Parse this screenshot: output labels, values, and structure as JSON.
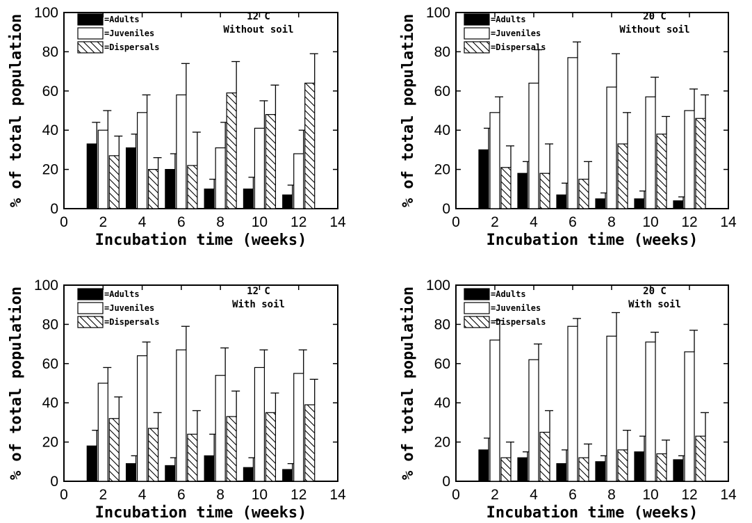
{
  "chart_data": [
    {
      "type": "bar",
      "condition": [
        "12 C",
        "Without soil"
      ],
      "xlabel": "Incubation time (weeks)",
      "ylabel": "% of total population",
      "xlim": [
        0,
        14
      ],
      "ylim": [
        0,
        100
      ],
      "xticks": [
        0,
        2,
        4,
        6,
        8,
        10,
        12,
        14
      ],
      "yticks": [
        0,
        20,
        40,
        60,
        80,
        100
      ],
      "legend": [
        "=Adults",
        "=Juveniles",
        "=Dispersals"
      ],
      "legend_position": "top-left",
      "x": [
        2,
        4,
        6,
        8,
        10,
        12
      ],
      "series": [
        {
          "name": "=Adults",
          "values": [
            33,
            31,
            20,
            10,
            10,
            7
          ],
          "error": [
            11,
            7,
            8,
            5,
            6,
            5
          ]
        },
        {
          "name": "=Juveniles",
          "values": [
            40,
            49,
            58,
            31,
            41,
            28
          ],
          "error": [
            10,
            9,
            16,
            13,
            14,
            12
          ]
        },
        {
          "name": "=Dispersals",
          "values": [
            27,
            20,
            22,
            59,
            48,
            64
          ],
          "error": [
            10,
            6,
            17,
            16,
            15,
            15
          ]
        }
      ]
    },
    {
      "type": "bar",
      "condition": [
        "20 C",
        "Without soil"
      ],
      "xlabel": "Incubation time (weeks)",
      "ylabel": "% of total population",
      "xlim": [
        0,
        14
      ],
      "ylim": [
        0,
        100
      ],
      "xticks": [
        0,
        2,
        4,
        6,
        8,
        10,
        12,
        14
      ],
      "yticks": [
        0,
        20,
        40,
        60,
        80,
        100
      ],
      "legend": [
        "=Adults",
        "=Juveniles",
        "=Dispersals"
      ],
      "legend_position": "top-left",
      "x": [
        2,
        4,
        6,
        8,
        10,
        12
      ],
      "series": [
        {
          "name": "=Adults",
          "values": [
            30,
            18,
            7,
            5,
            5,
            4
          ],
          "error": [
            11,
            6,
            6,
            3,
            4,
            2
          ]
        },
        {
          "name": "=Juveniles",
          "values": [
            49,
            64,
            77,
            62,
            57,
            50
          ],
          "error": [
            8,
            17,
            8,
            17,
            10,
            11
          ]
        },
        {
          "name": "=Dispersals",
          "values": [
            21,
            18,
            15,
            33,
            38,
            46
          ],
          "error": [
            11,
            15,
            9,
            16,
            9,
            12
          ]
        }
      ]
    },
    {
      "type": "bar",
      "condition": [
        "12 C",
        "With soil"
      ],
      "xlabel": "Incubation time (weeks)",
      "ylabel": "% of total population",
      "xlim": [
        0,
        14
      ],
      "ylim": [
        0,
        100
      ],
      "xticks": [
        0,
        2,
        4,
        6,
        8,
        10,
        12,
        14
      ],
      "yticks": [
        0,
        20,
        40,
        60,
        80,
        100
      ],
      "legend": [
        "=Adults",
        "=Juveniles",
        "=Dispersals"
      ],
      "legend_position": "top-left",
      "x": [
        2,
        4,
        6,
        8,
        10,
        12
      ],
      "series": [
        {
          "name": "=Adults",
          "values": [
            18,
            9,
            8,
            13,
            7,
            6
          ],
          "error": [
            8,
            4,
            4,
            11,
            5,
            3
          ]
        },
        {
          "name": "=Juveniles",
          "values": [
            50,
            64,
            67,
            54,
            58,
            55
          ],
          "error": [
            8,
            7,
            12,
            14,
            9,
            12
          ]
        },
        {
          "name": "=Dispersals",
          "values": [
            32,
            27,
            24,
            33,
            35,
            39
          ],
          "error": [
            11,
            8,
            12,
            13,
            10,
            13
          ]
        }
      ]
    },
    {
      "type": "bar",
      "condition": [
        "20 C",
        "With soil"
      ],
      "xlabel": "Incubation time (weeks)",
      "ylabel": "% of total population",
      "xlim": [
        0,
        14
      ],
      "ylim": [
        0,
        100
      ],
      "xticks": [
        0,
        2,
        4,
        6,
        8,
        10,
        12,
        14
      ],
      "yticks": [
        0,
        20,
        40,
        60,
        80,
        100
      ],
      "legend": [
        "=Adults",
        "=Juveniles",
        "=Dispersals"
      ],
      "legend_position": "top-left",
      "x": [
        2,
        4,
        6,
        8,
        10,
        12
      ],
      "series": [
        {
          "name": "=Adults",
          "values": [
            16,
            12,
            9,
            10,
            15,
            11
          ],
          "error": [
            6,
            3,
            7,
            3,
            8,
            2
          ]
        },
        {
          "name": "=Juveniles",
          "values": [
            72,
            62,
            79,
            74,
            71,
            66
          ],
          "error": [
            10,
            8,
            4,
            12,
            5,
            11
          ]
        },
        {
          "name": "=Dispersals",
          "values": [
            12,
            25,
            12,
            16,
            14,
            23
          ],
          "error": [
            8,
            11,
            7,
            10,
            7,
            12
          ]
        }
      ]
    }
  ]
}
